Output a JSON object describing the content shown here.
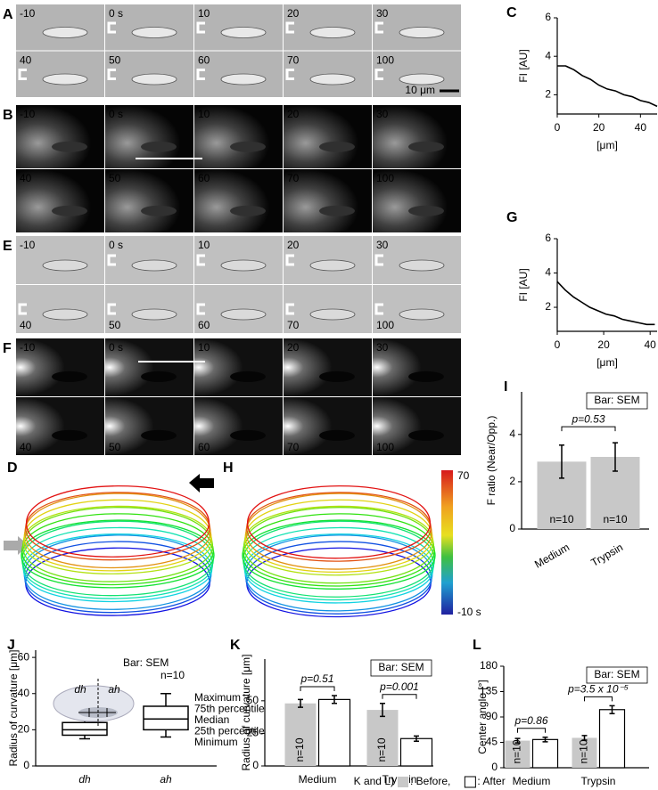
{
  "image_panels": [
    {
      "label": "A",
      "frames": [
        "-10",
        "0 s",
        "10",
        "20",
        "30",
        "40",
        "50",
        "60",
        "70",
        "100"
      ],
      "scale_bar": "10 μm"
    },
    {
      "label": "B",
      "frames": [
        "-10",
        "0 s",
        "10",
        "20",
        "30",
        "40",
        "50",
        "60",
        "70",
        "100"
      ]
    },
    {
      "label": "E",
      "frames": [
        "-10",
        "0 s",
        "10",
        "20",
        "30",
        "40",
        "50",
        "60",
        "70",
        "100"
      ]
    },
    {
      "label": "F",
      "frames": [
        "-10",
        "0 s",
        "10",
        "20",
        "30",
        "40",
        "50",
        "60",
        "70",
        "100"
      ]
    }
  ],
  "outline_panels": [
    {
      "label": "D"
    },
    {
      "label": "H"
    }
  ],
  "colorbar": {
    "ticks": [
      "70",
      "-10 s"
    ]
  },
  "chart_data": [
    {
      "type": "line",
      "panel": "C",
      "ylabel": "FI [AU]",
      "xlabel": "[μm]",
      "x": [
        0,
        4,
        8,
        12,
        16,
        20,
        24,
        28,
        32,
        36,
        40,
        44,
        48
      ],
      "values": [
        3.5,
        3.5,
        3.3,
        3.0,
        2.8,
        2.5,
        2.3,
        2.2,
        2.0,
        1.9,
        1.7,
        1.6,
        1.4
      ],
      "color": "#000000",
      "xlim": [
        0,
        48
      ],
      "ylim": [
        1,
        6
      ],
      "xticks": [
        0,
        20,
        40
      ],
      "yticks": [
        2,
        4,
        6
      ]
    },
    {
      "type": "line",
      "panel": "G",
      "ylabel": "FI [AU]",
      "xlabel": "[μm]",
      "x": [
        0,
        3.5,
        7,
        10.5,
        14,
        17.5,
        21,
        24.5,
        28,
        31.5,
        35,
        38.5,
        42
      ],
      "values": [
        3.5,
        3.0,
        2.6,
        2.3,
        2.0,
        1.8,
        1.6,
        1.5,
        1.3,
        1.2,
        1.1,
        1.0,
        1.0
      ],
      "color": "#000000",
      "xlim": [
        0,
        43
      ],
      "ylim": [
        0.6,
        6
      ],
      "xticks": [
        0,
        20,
        40
      ],
      "yticks": [
        2,
        4,
        6
      ]
    },
    {
      "type": "bar",
      "panel": "I",
      "ylabel": "F ratio (Near/Opp.)",
      "annotation": "Bar: SEM",
      "categories": [
        "Medium",
        "Trypsin"
      ],
      "values": [
        2.85,
        3.05
      ],
      "errors": [
        0.7,
        0.6
      ],
      "n_labels": [
        "n=10",
        "n=10"
      ],
      "p_values": [
        "p=0.53"
      ],
      "color": "#c8c8c8",
      "ylim": [
        0,
        5.8
      ],
      "yticks": [
        0,
        2,
        4
      ]
    },
    {
      "type": "box",
      "panel": "J",
      "ylabel": "Radius of curvature [μm]",
      "annotation": "Bar: SEM",
      "n_label": "n=10",
      "categories": [
        "dh",
        "ah"
      ],
      "inset_labels": [
        "dh",
        "ah"
      ],
      "boxes": [
        {
          "min": 15,
          "q1": 17,
          "median": 20,
          "q3": 24,
          "max": 27
        },
        {
          "min": 16,
          "q1": 20,
          "median": 26,
          "q3": 33,
          "max": 40
        }
      ],
      "legend": [
        "Maximum",
        "75th percentile",
        "Median",
        "25th percentile",
        "Minimum"
      ],
      "ylim": [
        0,
        64
      ],
      "yticks": [
        0,
        20,
        40,
        60
      ]
    },
    {
      "type": "grouped_bar",
      "panel": "K",
      "ylabel": "Radius of curvature [μm]",
      "annotation": "Bar: SEM",
      "categories": [
        "Medium",
        "Trypsin"
      ],
      "series": [
        {
          "color": "#c8c8c8",
          "values": [
            48,
            43
          ],
          "errors": [
            3,
            5
          ],
          "n_labels": [
            "n=10",
            "n=10"
          ]
        },
        {
          "color": "#ffffff",
          "values": [
            51,
            21
          ],
          "errors": [
            3,
            2
          ]
        }
      ],
      "p_values": [
        "p=0.51",
        "p=0.001"
      ],
      "ylim": [
        0,
        82
      ],
      "yticks": [
        0,
        25,
        50
      ]
    },
    {
      "type": "grouped_bar",
      "panel": "L",
      "ylabel": "Center angle [°]",
      "annotation": "Bar: SEM",
      "categories": [
        "Medium",
        "Trypsin"
      ],
      "series": [
        {
          "name": ": Before,",
          "color": "#c8c8c8",
          "values": [
            48,
            53
          ],
          "errors": [
            4,
            4
          ],
          "n_labels": [
            "n=10",
            "n=10"
          ]
        },
        {
          "name": ": After",
          "color": "#ffffff",
          "values": [
            50,
            103
          ],
          "errors": [
            4,
            7
          ]
        }
      ],
      "legend_title": "K and L)",
      "p_values": [
        "p=0.86",
        "p=3.5 x 10⁻⁵"
      ],
      "ylim": [
        0,
        180
      ],
      "yticks": [
        0,
        45,
        90,
        135,
        180
      ]
    }
  ]
}
